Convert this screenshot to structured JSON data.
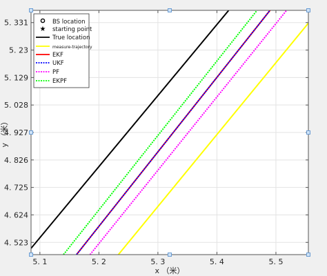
{
  "chart_data": {
    "type": "line",
    "xlabel": "x （米）",
    "ylabel": "y （米）",
    "xlim": [
      5.085,
      5.555
    ],
    "ylim": [
      4.478,
      5.376
    ],
    "xticks": [
      {
        "value": 5.1,
        "label": "5. 1"
      },
      {
        "value": 5.2,
        "label": "5. 2"
      },
      {
        "value": 5.3,
        "label": "5. 3"
      },
      {
        "value": 5.4,
        "label": "5. 4"
      },
      {
        "value": 5.5,
        "label": "5. 5"
      }
    ],
    "yticks": [
      {
        "value": 4.523,
        "label": "4. 523"
      },
      {
        "value": 4.624,
        "label": "4. 624"
      },
      {
        "value": 4.725,
        "label": "4. 725"
      },
      {
        "value": 4.826,
        "label": "4. 826"
      },
      {
        "value": 4.927,
        "label": "4. 927"
      },
      {
        "value": 5.028,
        "label": "5. 028"
      },
      {
        "value": 5.129,
        "label": "5. 129"
      },
      {
        "value": 5.23,
        "label": "5. 23"
      },
      {
        "value": 5.331,
        "label": "5. 331"
      }
    ],
    "grid": true,
    "legend_position": "top-left",
    "legend": [
      {
        "label": "BS location",
        "marker": "circle"
      },
      {
        "label": "starting point",
        "marker": "star"
      },
      {
        "label": "True location",
        "color": "#000000",
        "style": "solid"
      },
      {
        "label": "measure-trajectory",
        "color": "#ffff00",
        "style": "solid"
      },
      {
        "label": "EKF",
        "color": "#ff0000",
        "style": "solid"
      },
      {
        "label": "UKF",
        "color": "#0000ff",
        "style": "dashed"
      },
      {
        "label": "PF",
        "color": "#ff00ff",
        "style": "dashed"
      },
      {
        "label": "EKPF",
        "color": "#00ff00",
        "style": "dashed"
      }
    ],
    "series": [
      {
        "key": "true",
        "color": "#000000",
        "dash": "",
        "width": 2,
        "x": [
          5.085,
          5.42
        ],
        "y": [
          4.501,
          5.376
        ]
      },
      {
        "key": "ekpf",
        "color": "#00ff00",
        "dash": "2,1.5",
        "width": 2,
        "x": [
          5.14,
          5.468
        ],
        "y": [
          4.478,
          5.376
        ]
      },
      {
        "key": "ekf",
        "color": "#ff0000",
        "dash": "",
        "width": 2,
        "x": [
          5.162,
          5.49
        ],
        "y": [
          4.478,
          5.376
        ]
      },
      {
        "key": "ukf",
        "color": "#0000ff",
        "dash": "2,1.5",
        "width": 2,
        "x": [
          5.162,
          5.49
        ],
        "y": [
          4.478,
          5.376
        ]
      },
      {
        "key": "pf",
        "color": "#ff00ff",
        "dash": "2,1.5",
        "width": 2,
        "x": [
          5.185,
          5.518
        ],
        "y": [
          4.478,
          5.376
        ]
      },
      {
        "key": "measure",
        "color": "#ffff00",
        "dash": "",
        "width": 2,
        "x": [
          5.233,
          5.555
        ],
        "y": [
          4.478,
          5.329
        ]
      }
    ]
  }
}
